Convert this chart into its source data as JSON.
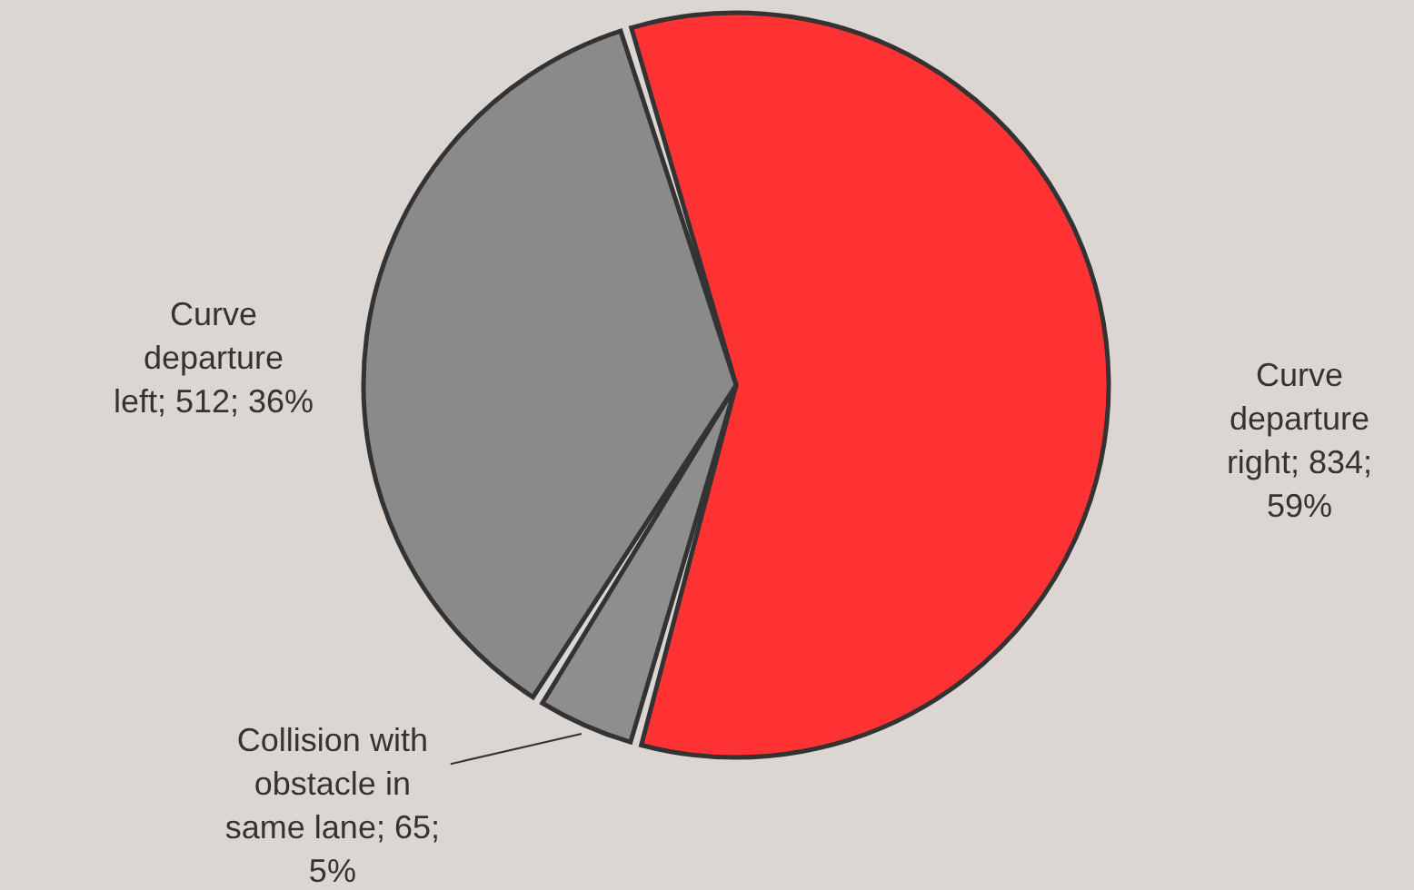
{
  "chart_data": {
    "type": "pie",
    "categories": [
      "Curve departure right",
      "Collision with obstacle in same lane",
      "Curve departure left"
    ],
    "values": [
      834,
      65,
      512
    ],
    "colors": [
      "#ff3333",
      "#8e8e8e",
      "#8a8a8a"
    ],
    "value_labels": [
      "834; 59%",
      "65; 5%",
      "512; 36%"
    ]
  }
}
